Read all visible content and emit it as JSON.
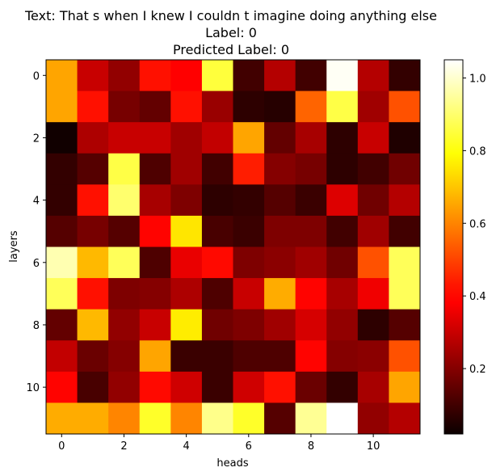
{
  "chart_data": {
    "type": "heatmap",
    "title_lines": [
      "Text: That s when I knew I couldn t imagine doing anything else",
      "Label: 0",
      "Predicted Label: 0"
    ],
    "xlabel": "heads",
    "ylabel": "layers",
    "x_ticks": [
      0,
      2,
      4,
      6,
      8,
      10
    ],
    "y_ticks": [
      0,
      2,
      4,
      6,
      8,
      10
    ],
    "colormap": "hot",
    "color_range": [
      0.02,
      1.05
    ],
    "colorbar_ticks": [
      0.2,
      0.4,
      0.6,
      0.8,
      1.0
    ],
    "colorbar_tick_labels": [
      "0.2",
      "0.4",
      "0.6",
      "0.8",
      "1.0"
    ],
    "values": [
      [
        0.65,
        0.3,
        0.22,
        0.42,
        0.38,
        0.85,
        0.1,
        0.27,
        0.1,
        1.04,
        0.27,
        0.08
      ],
      [
        0.65,
        0.42,
        0.18,
        0.15,
        0.42,
        0.23,
        0.07,
        0.06,
        0.55,
        0.86,
        0.24,
        0.52
      ],
      [
        0.03,
        0.26,
        0.3,
        0.3,
        0.24,
        0.29,
        0.65,
        0.15,
        0.25,
        0.07,
        0.3,
        0.05
      ],
      [
        0.08,
        0.13,
        0.86,
        0.12,
        0.24,
        0.1,
        0.44,
        0.2,
        0.18,
        0.07,
        0.1,
        0.17
      ],
      [
        0.08,
        0.42,
        0.9,
        0.25,
        0.19,
        0.07,
        0.08,
        0.13,
        0.09,
        0.33,
        0.17,
        0.27
      ],
      [
        0.13,
        0.18,
        0.13,
        0.4,
        0.75,
        0.11,
        0.09,
        0.19,
        0.19,
        0.1,
        0.24,
        0.1
      ],
      [
        0.97,
        0.68,
        0.88,
        0.12,
        0.35,
        0.41,
        0.19,
        0.21,
        0.24,
        0.17,
        0.52,
        0.88
      ],
      [
        0.88,
        0.42,
        0.19,
        0.2,
        0.26,
        0.12,
        0.3,
        0.66,
        0.4,
        0.25,
        0.36,
        0.88
      ],
      [
        0.15,
        0.68,
        0.22,
        0.3,
        0.76,
        0.17,
        0.19,
        0.24,
        0.32,
        0.22,
        0.07,
        0.13
      ],
      [
        0.29,
        0.16,
        0.2,
        0.65,
        0.09,
        0.09,
        0.12,
        0.12,
        0.4,
        0.2,
        0.21,
        0.52
      ],
      [
        0.4,
        0.11,
        0.22,
        0.41,
        0.31,
        0.09,
        0.31,
        0.42,
        0.16,
        0.08,
        0.25,
        0.65
      ],
      [
        0.66,
        0.66,
        0.6,
        0.83,
        0.6,
        0.93,
        0.83,
        0.13,
        0.94,
        1.05,
        0.22,
        0.27
      ]
    ]
  }
}
